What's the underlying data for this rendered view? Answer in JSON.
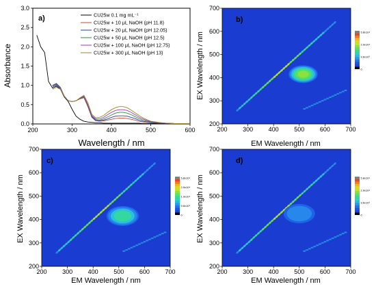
{
  "chart_data": [
    {
      "id": "a",
      "panel_label": "a)",
      "type": "line",
      "xlabel": "Wavelength / nm",
      "ylabel": "Absorbance",
      "xlim": [
        200,
        600
      ],
      "ylim": [
        0,
        3.0
      ],
      "xticks": [
        "200",
        "300",
        "400",
        "500",
        "600"
      ],
      "yticks": [
        "0.0",
        "0.5",
        "1.0",
        "1.5",
        "2.0",
        "2.5",
        "3.0"
      ],
      "legend_position": "top-right",
      "series": [
        {
          "name": "CU25w 0.1 mg mL⁻¹",
          "color": "#000000",
          "x": [
            210,
            220,
            230,
            240,
            250,
            260,
            270,
            280,
            290,
            300,
            310,
            320,
            330,
            340,
            350,
            360,
            370,
            380,
            390,
            400,
            410,
            420,
            430,
            440,
            450,
            460,
            470,
            480,
            490,
            500,
            520,
            540,
            560,
            580,
            600
          ],
          "y": [
            2.3,
            2.0,
            1.85,
            1.1,
            0.93,
            0.98,
            0.9,
            0.7,
            0.58,
            0.38,
            0.2,
            0.12,
            0.07,
            0.05,
            0.04,
            0.03,
            0.03,
            0.02,
            0.02,
            0.02,
            0.02,
            0.02,
            0.02,
            0.02,
            0.02,
            0.02,
            0.02,
            0.01,
            0.01,
            0.01,
            0.01,
            0.01,
            0.01,
            0.01,
            0.01
          ]
        },
        {
          "name": "CU25w + 10 μL NaOH (pH 11.8)",
          "color": "#d2452c",
          "x": [
            250,
            260,
            270,
            280,
            290,
            300,
            310,
            320,
            330,
            340,
            350,
            360,
            370,
            380,
            390,
            400,
            410,
            420,
            430,
            440,
            450,
            460,
            470,
            480,
            490,
            500,
            520,
            540,
            560,
            580,
            600
          ],
          "y": [
            1.0,
            1.05,
            0.95,
            0.72,
            0.6,
            0.58,
            0.6,
            0.65,
            0.68,
            0.45,
            0.17,
            0.08,
            0.07,
            0.08,
            0.1,
            0.12,
            0.14,
            0.15,
            0.15,
            0.14,
            0.12,
            0.1,
            0.07,
            0.05,
            0.04,
            0.03,
            0.02,
            0.02,
            0.01,
            0.01,
            0.01
          ]
        },
        {
          "name": "CU25w + 20 μL NaOH (pH 12.05)",
          "color": "#1f3fb0",
          "x": [
            250,
            260,
            270,
            280,
            290,
            300,
            310,
            320,
            330,
            340,
            350,
            360,
            370,
            380,
            390,
            400,
            410,
            420,
            430,
            440,
            450,
            460,
            470,
            480,
            490,
            500,
            520,
            540,
            560,
            580,
            600
          ],
          "y": [
            1.0,
            1.04,
            0.94,
            0.72,
            0.6,
            0.58,
            0.6,
            0.66,
            0.7,
            0.47,
            0.18,
            0.09,
            0.08,
            0.1,
            0.13,
            0.17,
            0.2,
            0.21,
            0.21,
            0.2,
            0.17,
            0.14,
            0.1,
            0.07,
            0.05,
            0.04,
            0.02,
            0.02,
            0.01,
            0.01,
            0.01
          ]
        },
        {
          "name": "CU25w + 50 μL NaOH (pH 12.5)",
          "color": "#2b8a3e",
          "x": [
            250,
            260,
            270,
            280,
            290,
            300,
            310,
            320,
            330,
            340,
            350,
            360,
            370,
            380,
            390,
            400,
            410,
            420,
            430,
            440,
            450,
            460,
            470,
            480,
            490,
            500,
            520,
            540,
            560,
            580,
            600
          ],
          "y": [
            0.98,
            1.02,
            0.93,
            0.72,
            0.6,
            0.58,
            0.6,
            0.66,
            0.71,
            0.48,
            0.2,
            0.11,
            0.1,
            0.13,
            0.18,
            0.23,
            0.28,
            0.3,
            0.3,
            0.28,
            0.24,
            0.19,
            0.14,
            0.1,
            0.07,
            0.05,
            0.03,
            0.02,
            0.01,
            0.01,
            0.01
          ]
        },
        {
          "name": "CU25w + 100 μL NaOH (pH 12.75)",
          "color": "#a234c8",
          "x": [
            250,
            260,
            270,
            280,
            290,
            300,
            310,
            320,
            330,
            340,
            350,
            360,
            370,
            380,
            390,
            400,
            410,
            420,
            430,
            440,
            450,
            460,
            470,
            480,
            490,
            500,
            520,
            540,
            560,
            580,
            600
          ],
          "y": [
            0.96,
            1.0,
            0.92,
            0.72,
            0.6,
            0.58,
            0.6,
            0.67,
            0.72,
            0.5,
            0.22,
            0.13,
            0.13,
            0.17,
            0.24,
            0.3,
            0.35,
            0.37,
            0.37,
            0.35,
            0.3,
            0.24,
            0.18,
            0.13,
            0.09,
            0.06,
            0.03,
            0.02,
            0.01,
            0.01,
            0.01
          ]
        },
        {
          "name": "CU25w + 300 μL NaOH (pH 13)",
          "color": "#9a8a18",
          "x": [
            250,
            260,
            270,
            280,
            290,
            300,
            310,
            320,
            330,
            340,
            350,
            360,
            370,
            380,
            390,
            400,
            410,
            420,
            430,
            440,
            450,
            460,
            470,
            480,
            490,
            500,
            520,
            540,
            560,
            580,
            600
          ],
          "y": [
            0.9,
            0.95,
            0.9,
            0.72,
            0.6,
            0.58,
            0.6,
            0.68,
            0.74,
            0.55,
            0.25,
            0.16,
            0.17,
            0.22,
            0.3,
            0.37,
            0.42,
            0.45,
            0.45,
            0.42,
            0.36,
            0.29,
            0.22,
            0.16,
            0.11,
            0.07,
            0.04,
            0.02,
            0.01,
            0.01,
            0.01
          ]
        }
      ]
    },
    {
      "id": "b",
      "panel_label": "b)",
      "type": "heatmap",
      "xlabel": "EM Wavelength / nm",
      "ylabel": "EX Wavelength / nm",
      "xlim": [
        200,
        700
      ],
      "ylim": [
        200,
        700
      ],
      "xticks": [
        "200",
        "300",
        "400",
        "500",
        "600",
        "700"
      ],
      "yticks": [
        "200",
        "300",
        "400",
        "500",
        "600",
        "700"
      ],
      "colorbar_labels": [
        "5.8x10⁴",
        "2.9x10⁴",
        "9.6x10³",
        "0"
      ],
      "peak_em": 515,
      "peak_ex": 415,
      "peak_intensity": 0.6,
      "peak_spread_nm": 42
    },
    {
      "id": "c",
      "panel_label": "c)",
      "type": "heatmap",
      "xlabel": "EM Wavelength / nm",
      "ylabel": "EX Wavelength / nm",
      "xlim": [
        200,
        700
      ],
      "ylim": [
        200,
        700
      ],
      "xticks": [
        "200",
        "300",
        "400",
        "500",
        "600",
        "700"
      ],
      "yticks": [
        "200",
        "300",
        "400",
        "500",
        "600",
        "700"
      ],
      "colorbar_labels": [
        "5.8x10⁴",
        "2.9x10⁴",
        "1.9x10⁴",
        "9.6x10³",
        "0"
      ],
      "peak_em": 515,
      "peak_ex": 415,
      "peak_intensity": 0.48,
      "peak_spread_nm": 48
    },
    {
      "id": "d",
      "panel_label": "d)",
      "type": "heatmap",
      "xlabel": "EM Wavelength / nm",
      "ylabel": "EX Wavelength / nm",
      "xlim": [
        200,
        700
      ],
      "ylim": [
        200,
        700
      ],
      "xticks": [
        "200",
        "300",
        "400",
        "500",
        "600",
        "700"
      ],
      "yticks": [
        "200",
        "300",
        "400",
        "500",
        "600",
        "700"
      ],
      "colorbar_labels": [
        "5.8x10⁴",
        "2.9x10⁴",
        "9.6x10³",
        "0"
      ],
      "peak_em": 500,
      "peak_ex": 425,
      "peak_intensity": 0.3,
      "peak_spread_nm": 52
    }
  ]
}
